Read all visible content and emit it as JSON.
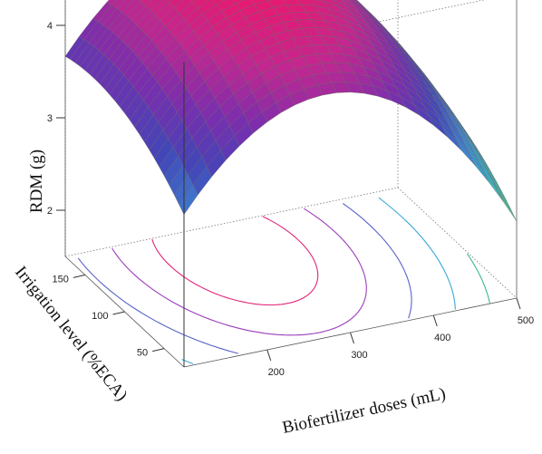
{
  "chart_data": {
    "type": "surface",
    "title": "",
    "xlabel": "Biofertilizer doses (mL)",
    "ylabel": "Irrigation level (%ECA)",
    "zlabel": "RDM (g)",
    "xlim": [
      100,
      500
    ],
    "ylim": [
      25,
      175
    ],
    "zlim": [
      1.5,
      4.8
    ],
    "x_ticks": [
      200,
      300,
      400,
      500
    ],
    "x_tick_labels": [
      "200",
      "300",
      "400",
      "500"
    ],
    "y_ticks": [
      50,
      100,
      150
    ],
    "y_tick_labels": [
      "50",
      "100",
      "150"
    ],
    "z_ticks": [
      2,
      3,
      4
    ],
    "z_tick_labels": [
      "2",
      "3",
      "4"
    ],
    "model": {
      "form": "z = z_max - ax*(x - x_opt)^2 - ay*(y - y_opt)^2",
      "x_opt": 270,
      "y_opt": 140,
      "z_max": 4.7,
      "ax": 3.4e-05,
      "ay": 4.3e-05
    },
    "contour_levels": [
      1.8,
      2.3,
      2.8,
      3.3,
      3.8,
      4.2,
      4.5
    ],
    "contour_colors": [
      "#e6d33a",
      "#9acb3c",
      "#3cb98d",
      "#3aa9d6",
      "#5a63c8",
      "#9a3dbb",
      "#e0267a"
    ],
    "colormap": [
      "#ffdc00",
      "#b3d334",
      "#5bc07a",
      "#38b7c9",
      "#3f86d3",
      "#4345b8",
      "#7a2eae",
      "#c3278f",
      "#f0166a"
    ],
    "grid_lines": "#666666"
  }
}
